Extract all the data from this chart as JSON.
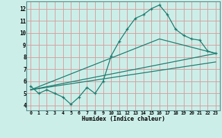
{
  "title": "",
  "xlabel": "Humidex (Indice chaleur)",
  "bg_color": "#cceee8",
  "grid_color": "#d4a0a0",
  "line_color": "#1a7a6e",
  "xlim": [
    -0.5,
    23.5
  ],
  "ylim": [
    3.6,
    12.6
  ],
  "xticks": [
    0,
    1,
    2,
    3,
    4,
    5,
    6,
    7,
    8,
    9,
    10,
    11,
    12,
    13,
    14,
    15,
    16,
    17,
    18,
    19,
    20,
    21,
    22,
    23
  ],
  "yticks": [
    4,
    5,
    6,
    7,
    8,
    9,
    10,
    11,
    12
  ],
  "line1_x": [
    0,
    1,
    2,
    3,
    4,
    5,
    6,
    7,
    8,
    9,
    10,
    11,
    12,
    13,
    14,
    15,
    16,
    17,
    18,
    19,
    20,
    21,
    22,
    23
  ],
  "line1_y": [
    5.6,
    5.0,
    5.3,
    5.0,
    4.7,
    4.1,
    4.7,
    5.5,
    5.0,
    6.0,
    8.1,
    9.3,
    10.3,
    11.2,
    11.5,
    12.0,
    12.3,
    11.5,
    10.3,
    9.8,
    9.5,
    9.4,
    8.5,
    8.3
  ],
  "line2_x": [
    0,
    23
  ],
  "line2_y": [
    5.3,
    8.3
  ],
  "line3_x": [
    0,
    16,
    23
  ],
  "line3_y": [
    5.3,
    9.5,
    8.3
  ],
  "line4_x": [
    0,
    23
  ],
  "line4_y": [
    5.3,
    7.6
  ]
}
